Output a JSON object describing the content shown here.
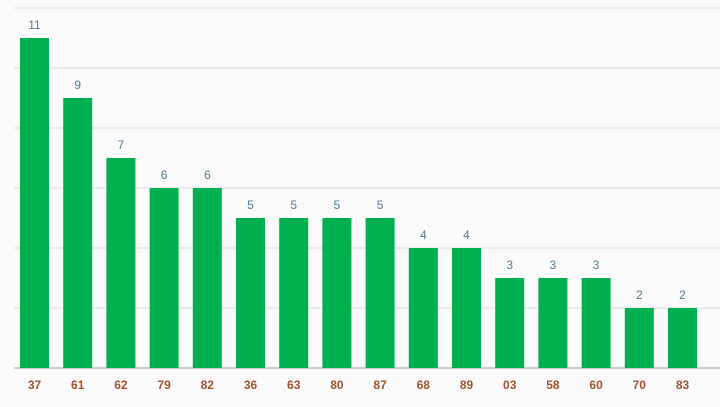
{
  "chart_data": {
    "type": "bar",
    "categories": [
      "37",
      "61",
      "62",
      "79",
      "82",
      "36",
      "63",
      "80",
      "87",
      "68",
      "89",
      "03",
      "58",
      "60",
      "70",
      "83"
    ],
    "values": [
      11,
      9,
      7,
      6,
      6,
      5,
      5,
      5,
      5,
      4,
      4,
      3,
      3,
      3,
      2,
      2
    ],
    "ylim": [
      0,
      12
    ],
    "grid": true,
    "colors": {
      "bar": "#00b050",
      "value_label": "#4f7c93",
      "category_label": "#a0522d",
      "grid": "#d9d9d9",
      "axis": "#999999"
    }
  }
}
